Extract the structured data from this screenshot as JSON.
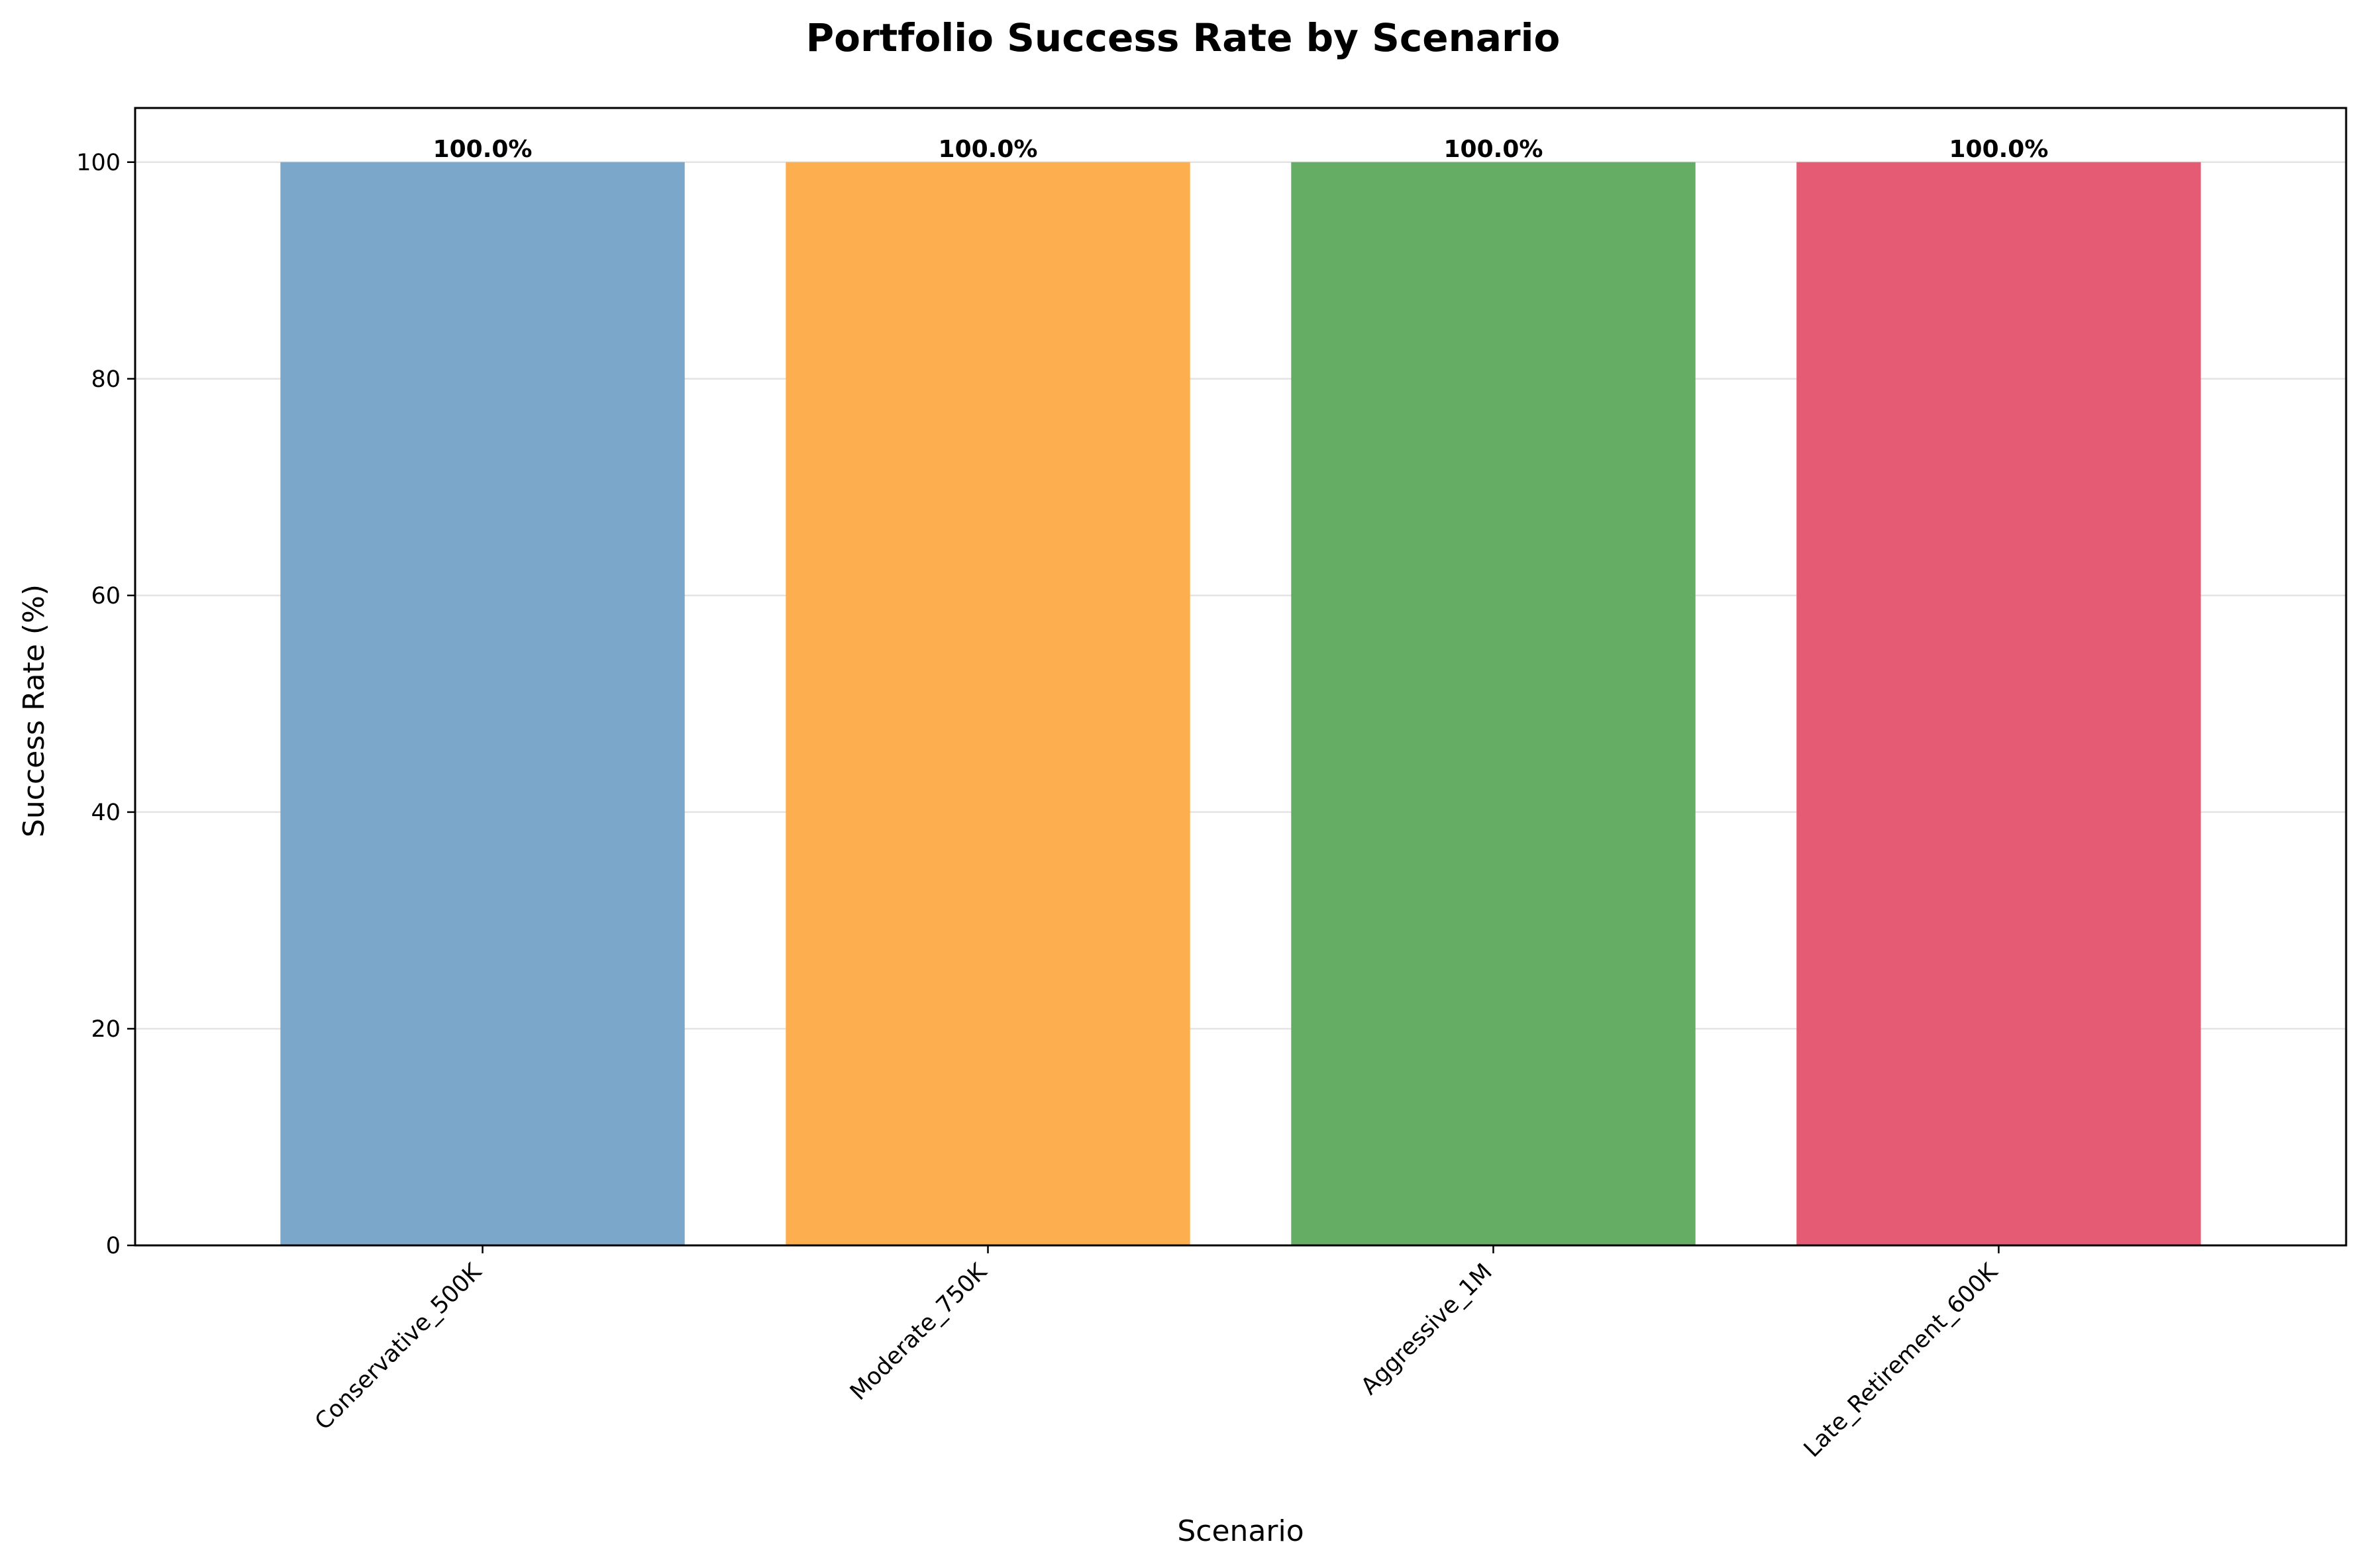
{
  "chart_data": {
    "type": "bar",
    "title": "Portfolio Success Rate by Scenario",
    "xlabel": "Scenario",
    "ylabel": "Success Rate (%)",
    "categories": [
      "Conservative_500K",
      "Moderate_750K",
      "Aggressive_1M",
      "Late_Retirement_600K"
    ],
    "values": [
      100.0,
      100.0,
      100.0,
      100.0
    ],
    "data_labels": [
      "100.0%",
      "100.0%",
      "100.0%",
      "100.0%"
    ],
    "bar_colors": [
      "#7ba7cb",
      "#fdae4e",
      "#65ad64",
      "#e55b74"
    ],
    "ylim": [
      0,
      105
    ],
    "yticks": [
      0,
      20,
      40,
      60,
      80,
      100
    ],
    "ytick_labels": [
      "0",
      "20",
      "40",
      "60",
      "80",
      "100"
    ],
    "grid": "horizontal",
    "legend": "none"
  }
}
